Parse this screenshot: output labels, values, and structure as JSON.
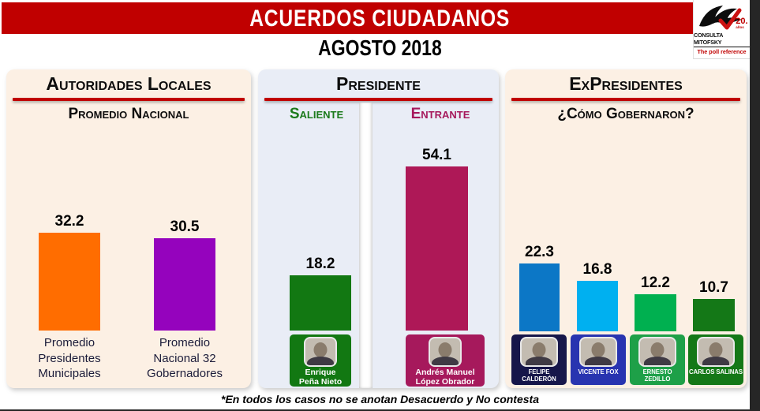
{
  "header": {
    "title": "ACUERDOS CIUDADANOS",
    "subtitle": "AGOSTO 2018",
    "logo": {
      "brand": "CONSULTA MITOFSKY",
      "tagline": "The poll reference",
      "years_badge": "20.",
      "years_label": "años"
    }
  },
  "panels": {
    "local": {
      "title": "Autoridades Locales",
      "subtitle": "Promedio Nacional"
    },
    "presidente": {
      "title": "Presidente",
      "saliente_label": "Saliente",
      "entrante_label": "Entrante"
    },
    "expresidentes": {
      "title": "ExPresidentes",
      "subtitle": "¿Cómo Gobernaron?"
    }
  },
  "footnote": "*En todos los casos no se anotan Desacuerdo y No contesta",
  "colors": {
    "banner_red": "#C00000",
    "rule_red": "#C00000",
    "cream_panel": "#FCF0E4",
    "blue_panel": "#E9EDF6",
    "saliente_green": "#1B7A1B",
    "entrante_crimson": "#A6195C",
    "edge_dark": "#262626"
  },
  "chart_data": [
    {
      "type": "bar",
      "title": "Autoridades Locales — Promedio Nacional",
      "categories": [
        "Promedio Presidentes Municipales",
        "Promedio Nacional 32 Gobernadores"
      ],
      "values": [
        32.2,
        30.5
      ],
      "colors": [
        "#FF6D00",
        "#9503BD"
      ],
      "labels": [
        "Promedio\nPresidentes\nMunicipales",
        "Promedio\nNacional 32\nGobernadores"
      ]
    },
    {
      "type": "bar",
      "title": "Presidente — Saliente vs Entrante",
      "categories": [
        "Enrique Peña Nieto (Saliente)",
        "Andrés Manuel López Obrador (Entrante)"
      ],
      "values": [
        18.2,
        54.1
      ],
      "colors": [
        "#127812",
        "#AE1857"
      ],
      "labels": [
        "Enrique\nPeña Nieto",
        "Andrés Manuel\nLópez Obrador"
      ],
      "plate_colors": [
        "#127812",
        "#A6195C"
      ]
    },
    {
      "type": "bar",
      "title": "ExPresidentes — ¿Cómo Gobernaron?",
      "categories": [
        "Felipe Calderón",
        "Vicente Fox",
        "Ernesto Zedillo",
        "Carlos Salinas"
      ],
      "values": [
        22.3,
        16.8,
        12.2,
        10.7
      ],
      "colors": [
        "#0C77C6",
        "#00B0F0",
        "#00B050",
        "#147817"
      ],
      "labels": [
        "FELIPE CALDERÓN",
        "VICENTE FOX",
        "ERNESTO ZEDILLO",
        "CARLOS SALINAS"
      ],
      "plate_colors": [
        "#16164A",
        "#2834B0",
        "#1EA048",
        "#147817"
      ]
    }
  ]
}
